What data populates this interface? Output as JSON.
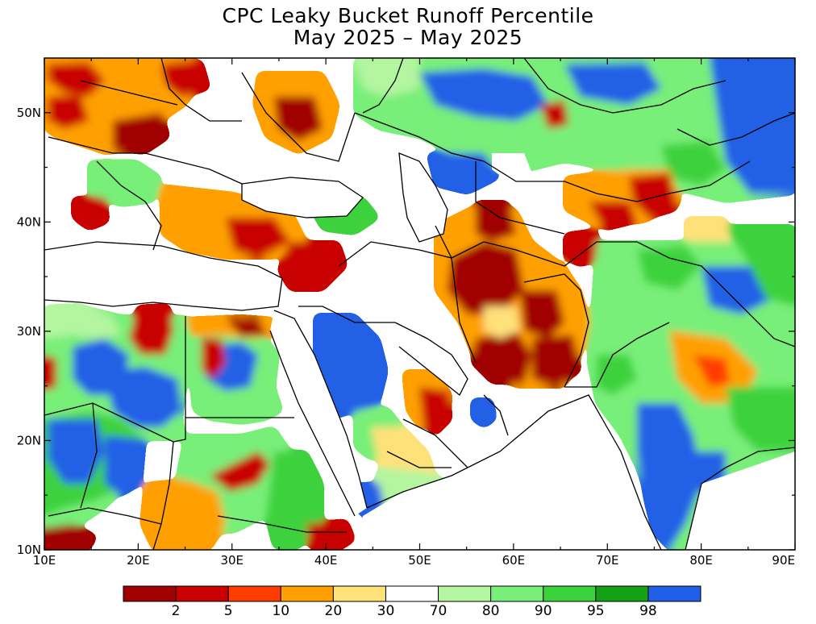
{
  "title": {
    "line1": "CPC Leaky Bucket Runoff Percentile",
    "line2": "May 2025 – May 2025"
  },
  "map": {
    "lon_range": [
      10,
      90
    ],
    "lat_range": [
      10,
      55
    ],
    "lon_ticks": [
      {
        "value": 10,
        "label": "10E"
      },
      {
        "value": 20,
        "label": "20E"
      },
      {
        "value": 30,
        "label": "30E"
      },
      {
        "value": 40,
        "label": "40E"
      },
      {
        "value": 50,
        "label": "50E"
      },
      {
        "value": 60,
        "label": "60E"
      },
      {
        "value": 70,
        "label": "70E"
      },
      {
        "value": 80,
        "label": "80E"
      },
      {
        "value": 90,
        "label": "90E"
      }
    ],
    "lat_ticks": [
      {
        "value": 10,
        "label": "10N"
      },
      {
        "value": 20,
        "label": "20N"
      },
      {
        "value": 30,
        "label": "30N"
      },
      {
        "value": 40,
        "label": "40N"
      },
      {
        "value": 50,
        "label": "50N"
      }
    ],
    "background_color": "#ffffff",
    "border_color": "#000000"
  },
  "colorbar": {
    "boxes": [
      {
        "color": "#a00000",
        "label": ""
      },
      {
        "color": "#c80000",
        "label": "2"
      },
      {
        "color": "#ff3c00",
        "label": "5"
      },
      {
        "color": "#ffa000",
        "label": "10"
      },
      {
        "color": "#ffe17a",
        "label": "20"
      },
      {
        "color": "#ffffff",
        "label": "30"
      },
      {
        "color": "#b4f5a0",
        "label": "70"
      },
      {
        "color": "#78ef78",
        "label": "80"
      },
      {
        "color": "#3cd23c",
        "label": "90"
      },
      {
        "color": "#14a014",
        "label": "95"
      },
      {
        "color": "#2060e6",
        "label": "98"
      }
    ]
  }
}
